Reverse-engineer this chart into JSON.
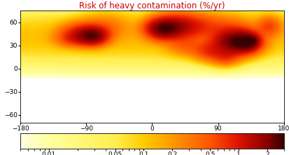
{
  "title": "Risk of heavy contamination (%/yr)",
  "title_color": "#cc0000",
  "title_fontsize": 8.5,
  "xlim": [
    -180,
    180
  ],
  "ylim": [
    -70,
    75
  ],
  "xticks": [
    -180,
    -90,
    0,
    90,
    180
  ],
  "yticks": [
    -60,
    -30,
    0,
    30,
    60
  ],
  "colorbar_ticks": [
    0.01,
    0.05,
    0.1,
    0.2,
    0.5,
    1,
    2
  ],
  "colorbar_ticklabels": [
    "0.01",
    "0.05",
    "0.1",
    "0.2",
    "0.5",
    "1",
    "2"
  ],
  "cmap_colors": [
    "#ffffff",
    "#fefee0",
    "#ffffa0",
    "#ffee50",
    "#ffcc00",
    "#ff9900",
    "#ff5500",
    "#dd1100",
    "#880000",
    "#3a0000"
  ],
  "cmap_log_vals": [
    0.001,
    0.005,
    0.01,
    0.05,
    0.1,
    0.2,
    0.5,
    1.0,
    2.0,
    3.0
  ],
  "vmin_log": 0.001,
  "vmax_log": 3.0,
  "figsize": [
    4.14,
    2.21
  ],
  "dpi": 100,
  "map_background": "#ffffff",
  "border_color": "#222222",
  "border_lw": 0.35,
  "hotspots": [
    {
      "lon": -80,
      "lat": 42,
      "amp": 1.8,
      "slon": 12,
      "slat": 7
    },
    {
      "lon": -95,
      "lat": 46,
      "amp": 0.9,
      "slon": 18,
      "slat": 8
    },
    {
      "lon": -105,
      "lat": 38,
      "amp": 0.5,
      "slon": 15,
      "slat": 6
    },
    {
      "lon": 15,
      "lat": 52,
      "amp": 2.2,
      "slon": 14,
      "slat": 8
    },
    {
      "lon": 35,
      "lat": 55,
      "amp": 1.0,
      "slon": 18,
      "slat": 10
    },
    {
      "lon": 55,
      "lat": 55,
      "amp": 0.4,
      "slon": 20,
      "slat": 10
    },
    {
      "lon": 115,
      "lat": 35,
      "amp": 2.5,
      "slon": 18,
      "slat": 10
    },
    {
      "lon": 130,
      "lat": 34,
      "amp": 1.5,
      "slon": 10,
      "slat": 7
    },
    {
      "lon": 137,
      "lat": 36,
      "amp": 0.9,
      "slon": 6,
      "slat": 5
    },
    {
      "lon": 78,
      "lat": 23,
      "amp": 0.6,
      "slon": 14,
      "slat": 8
    },
    {
      "lon": 100,
      "lat": 15,
      "amp": 0.5,
      "slon": 12,
      "slat": 7
    },
    {
      "lon": 160,
      "lat": 55,
      "amp": 0.5,
      "slon": 10,
      "slat": 8
    },
    {
      "lon": -65,
      "lat": 55,
      "amp": 0.25,
      "slon": 20,
      "slat": 10
    },
    {
      "lon": 45,
      "lat": 30,
      "amp": 0.3,
      "slon": 15,
      "slat": 8
    },
    {
      "lon": 90,
      "lat": 55,
      "amp": 0.3,
      "slon": 25,
      "slat": 10
    }
  ],
  "nh_base_amp": 0.05,
  "nh_base_lat": 45,
  "nh_base_slat": 25,
  "nh_base_slon": 200
}
